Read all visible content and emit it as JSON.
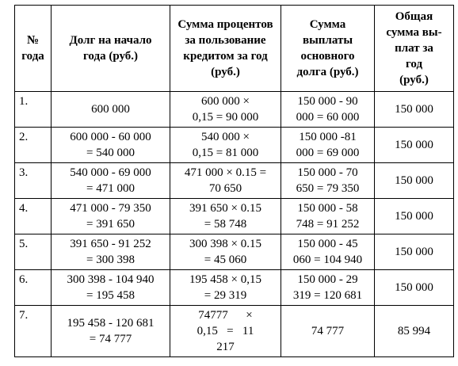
{
  "headers": {
    "col1": "№\nгода",
    "col2": "Долг на начало\nгода (руб.)",
    "col3": "Сумма процентов\nза пользование\nкредитом за год\n(руб.)",
    "col4": "Сумма\nвыплаты\nосновного\nдолга (руб.)",
    "col5": "Общая\nсумма вы-\nплат за\nгод\n(руб.)"
  },
  "rows": [
    {
      "n": "1.",
      "debt": "600 000",
      "interest": "600 000 ×\n0,15 = 90 000",
      "principal": "150 000 - 90\n000 = 60 000",
      "total": "150 000"
    },
    {
      "n": "2.",
      "debt": "600 000 - 60 000\n= 540 000",
      "interest": "540 000 ×\n0,15 = 81 000",
      "principal": "150 000 -81\n000 = 69 000",
      "total": "150 000"
    },
    {
      "n": "3.",
      "debt": "540 000 - 69 000\n= 471 000",
      "interest": "471 000 × 0.15 =\n70 650",
      "principal": "150 000 - 70\n650 = 79 350",
      "total": "150 000"
    },
    {
      "n": "4.",
      "debt": "471 000 - 79 350\n= 391 650",
      "interest": "391 650 × 0.15\n= 58 748",
      "principal": "150 000 - 58\n748 = 91 252",
      "total": "150 000"
    },
    {
      "n": "5.",
      "debt": "391 650 - 91 252\n= 300 398",
      "interest": "300 398 × 0.15\n= 45 060",
      "principal": "150 000 - 45\n060 = 104 940",
      "total": "150 000"
    },
    {
      "n": "6.",
      "debt": "300 398 - 104 940\n= 195 458",
      "interest": "195 458 × 0,15\n= 29 319",
      "principal": "150 000 - 29\n319 = 120 681",
      "total": "150 000"
    }
  ],
  "last_row": {
    "n": "7.",
    "debt": "195 458 - 120 681\n= 74 777",
    "interest_line1": "74777      ×",
    "interest_line2": "0,15   =   11",
    "interest_line3": "217",
    "principal": "74 777",
    "total": "85 994"
  }
}
